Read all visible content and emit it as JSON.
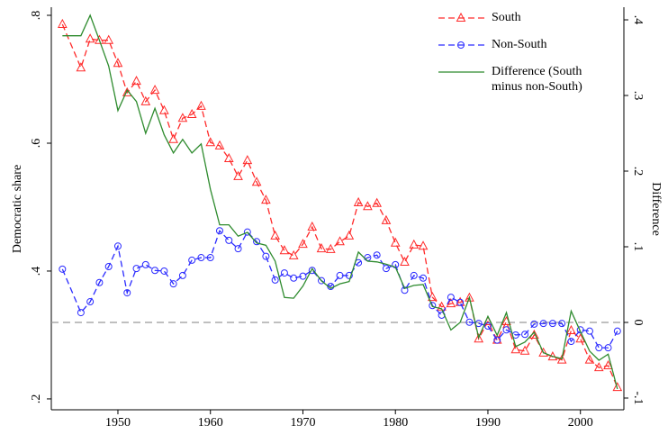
{
  "chart_data": {
    "type": "line",
    "x": [
      1944,
      1946,
      1947,
      1948,
      1949,
      1950,
      1951,
      1952,
      1953,
      1954,
      1955,
      1956,
      1957,
      1958,
      1959,
      1960,
      1961,
      1962,
      1963,
      1964,
      1965,
      1966,
      1967,
      1968,
      1969,
      1970,
      1971,
      1972,
      1973,
      1974,
      1975,
      1976,
      1977,
      1978,
      1979,
      1980,
      1981,
      1982,
      1983,
      1984,
      1985,
      1986,
      1987,
      1988,
      1989,
      1990,
      1991,
      1992,
      1993,
      1994,
      1995,
      1996,
      1997,
      1998,
      1999,
      2000,
      2001,
      2002,
      2003,
      2004
    ],
    "series": [
      {
        "name": "South",
        "color": "#ff2a2a",
        "dash": true,
        "marker": "triangle",
        "values": [
          0.786,
          0.718,
          0.763,
          0.761,
          0.761,
          0.725,
          0.679,
          0.697,
          0.665,
          0.683,
          0.651,
          0.606,
          0.639,
          0.645,
          0.658,
          0.601,
          0.596,
          0.576,
          0.548,
          0.573,
          0.539,
          0.511,
          0.455,
          0.432,
          0.424,
          0.442,
          0.469,
          0.435,
          0.434,
          0.446,
          0.455,
          0.507,
          0.501,
          0.506,
          0.479,
          0.444,
          0.414,
          0.441,
          0.439,
          0.359,
          0.344,
          0.349,
          0.351,
          0.358,
          0.294,
          0.321,
          0.292,
          0.321,
          0.277,
          0.275,
          0.3,
          0.272,
          0.266,
          0.261,
          0.307,
          0.294,
          0.261,
          0.249,
          0.252,
          0.218
        ]
      },
      {
        "name": "Non-South",
        "color": "#2a2aff",
        "dash": true,
        "marker": "circle",
        "values": [
          0.403,
          0.335,
          0.352,
          0.382,
          0.407,
          0.439,
          0.366,
          0.404,
          0.41,
          0.401,
          0.4,
          0.38,
          0.393,
          0.417,
          0.421,
          0.421,
          0.463,
          0.448,
          0.435,
          0.461,
          0.446,
          0.423,
          0.386,
          0.397,
          0.389,
          0.392,
          0.401,
          0.385,
          0.376,
          0.393,
          0.393,
          0.413,
          0.421,
          0.425,
          0.404,
          0.41,
          0.37,
          0.393,
          0.389,
          0.346,
          0.331,
          0.359,
          0.351,
          0.32,
          0.318,
          0.314,
          0.292,
          0.308,
          0.3,
          0.301,
          0.317,
          0.318,
          0.318,
          0.318,
          0.29,
          0.308,
          0.306,
          0.28,
          0.28,
          0.306
        ]
      },
      {
        "name": "Difference (South minus non-South)",
        "color": "#2e8b2e",
        "dash": false,
        "axis": "y2",
        "values": [
          0.379,
          0.379,
          0.406,
          0.373,
          0.339,
          0.28,
          0.307,
          0.292,
          0.25,
          0.283,
          0.248,
          0.224,
          0.242,
          0.224,
          0.236,
          0.176,
          0.129,
          0.129,
          0.114,
          0.119,
          0.105,
          0.102,
          0.081,
          0.033,
          0.032,
          0.048,
          0.071,
          0.055,
          0.045,
          0.051,
          0.054,
          0.093,
          0.081,
          0.08,
          0.077,
          0.073,
          0.045,
          0.049,
          0.05,
          0.021,
          0.018,
          -0.01,
          0,
          0.033,
          -0.02,
          0.008,
          -0.017,
          0.013,
          -0.032,
          -0.026,
          -0.013,
          -0.04,
          -0.045,
          -0.048,
          0.015,
          -0.012,
          -0.038,
          -0.05,
          -0.042,
          -0.088
        ]
      }
    ],
    "y_label": "Democratic share",
    "y2_label": "Difference",
    "xlim": [
      1942.8,
      2004.7
    ],
    "xticks": [
      1950,
      1960,
      1970,
      1980,
      1990,
      2000
    ],
    "ylim": [
      0.183,
      0.8127
    ],
    "yticks": [
      {
        "value": 0.2,
        "label": ".2"
      },
      {
        "value": 0.4,
        "label": ".4"
      },
      {
        "value": 0.6,
        "label": ".6"
      },
      {
        "value": 0.8,
        "label": ".8"
      }
    ],
    "y2lim": [
      -0.1155,
      0.4167
    ],
    "y2ticks": [
      {
        "value": -0.1,
        "label": "-.1"
      },
      0,
      {
        "value": 0.1,
        "label": ".1"
      },
      {
        "value": 0.2,
        "label": ".2"
      },
      {
        "value": 0.3,
        "label": ".3"
      },
      {
        "value": 0.4,
        "label": ".4"
      }
    ],
    "y2_reference_line": 0,
    "legend": "upper right",
    "grid": false
  }
}
